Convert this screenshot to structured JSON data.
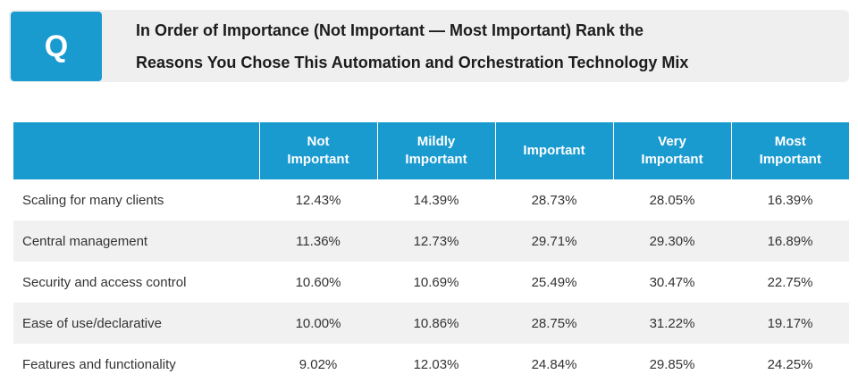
{
  "question": {
    "badge": "Q",
    "title_line1": "In Order of Importance (Not Important — Most Important) Rank the",
    "title_line2": "Reasons You Chose This Automation and Orchestration Technology Mix"
  },
  "chart_data": {
    "type": "table",
    "columns": [
      "",
      "Not Important",
      "Mildly Important",
      "Important",
      "Very Important",
      "Most Important"
    ],
    "header_lines": [
      [
        "Not",
        "Important"
      ],
      [
        "Mildly",
        "Important"
      ],
      [
        "Important"
      ],
      [
        "Very",
        "Important"
      ],
      [
        "Most",
        "Important"
      ]
    ],
    "rows": [
      {
        "label": "Scaling for many clients",
        "values": [
          "12.43%",
          "14.39%",
          "28.73%",
          "28.05%",
          "16.39%"
        ]
      },
      {
        "label": "Central management",
        "values": [
          "11.36%",
          "12.73%",
          "29.71%",
          "29.30%",
          "16.89%"
        ]
      },
      {
        "label": "Security and access control",
        "values": [
          "10.60%",
          "10.69%",
          "25.49%",
          "30.47%",
          "22.75%"
        ]
      },
      {
        "label": "Ease of use/declarative",
        "values": [
          "10.00%",
          "10.86%",
          "28.75%",
          "31.22%",
          "19.17%"
        ]
      },
      {
        "label": "Features and functionality",
        "values": [
          "9.02%",
          "12.03%",
          "24.84%",
          "29.85%",
          "24.25%"
        ]
      }
    ]
  },
  "colors": {
    "accent": "#1a9bd0",
    "stripe": "#f1f1f1",
    "question_bar": "#efefef"
  }
}
